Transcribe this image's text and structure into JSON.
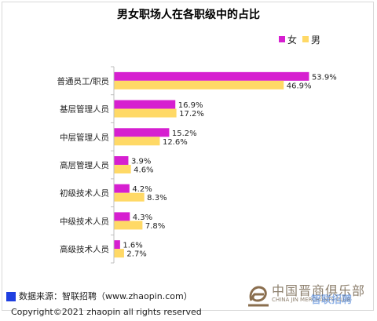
{
  "chart_data": {
    "type": "bar",
    "orientation": "horizontal",
    "title": "男女职场人在各职级中的占比",
    "categories": [
      "普通员工/职员",
      "基层管理人员",
      "中层管理人员",
      "高层管理人员",
      "初级技术人员",
      "中级技术人员",
      "高级技术人员"
    ],
    "series": [
      {
        "name": "女",
        "color": "#d61fd0",
        "values": [
          53.9,
          16.9,
          15.2,
          3.9,
          4.2,
          4.3,
          1.6
        ],
        "labels": [
          "53.9%",
          "16.9%",
          "15.2%",
          "3.9%",
          "4.2%",
          "4.3%",
          "1.6%"
        ]
      },
      {
        "name": "男",
        "color": "#ffd966",
        "values": [
          46.9,
          17.2,
          12.6,
          4.6,
          8.3,
          7.8,
          2.7
        ],
        "labels": [
          "46.9%",
          "17.2%",
          "12.6%",
          "4.6%",
          "8.3%",
          "7.8%",
          "2.7%"
        ]
      }
    ],
    "xlim": [
      0,
      60
    ],
    "legend_position": "top-right",
    "grid": false
  },
  "footer": {
    "source": "数据来源：智联招聘（www.zhaopin.com）",
    "copyright": "Copyright©2021 zhaopin all rights reserved"
  },
  "watermark": {
    "cn": "中国晋商俱乐部",
    "en": "CHINA JIN MERCHANTS CLUB",
    "stamp": "智联招聘"
  }
}
